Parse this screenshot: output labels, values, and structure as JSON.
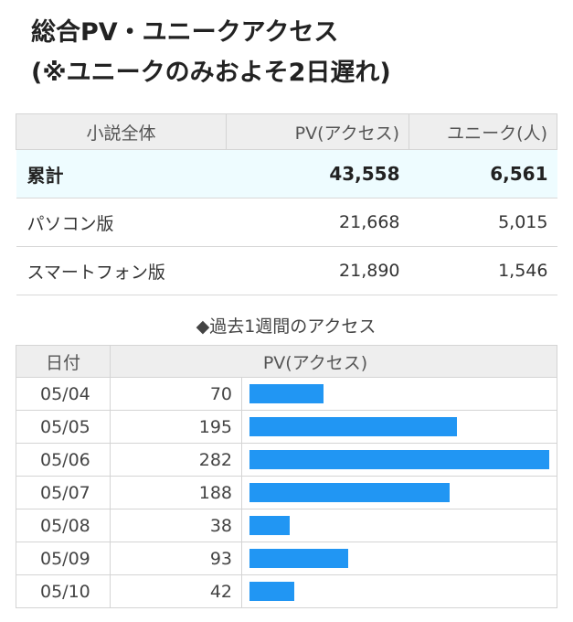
{
  "title": {
    "line1": "総合PV・ユニークアクセス",
    "line2": "(※ユニークのみおよそ2日遅れ)"
  },
  "summary": {
    "headers": [
      "小説全体",
      "PV(アクセス)",
      "ユニーク(人)"
    ],
    "rows": [
      {
        "label": "累計",
        "pv": "43,558",
        "unique": "6,561"
      },
      {
        "label": "パソコン版",
        "pv": "21,668",
        "unique": "5,015"
      },
      {
        "label": "スマートフォン版",
        "pv": "21,890",
        "unique": "1,546"
      }
    ]
  },
  "weekly": {
    "caption": "◆過去1週間のアクセス",
    "headers": [
      "日付",
      "PV(アクセス)"
    ],
    "bar_color": "#2196f3",
    "rows": [
      {
        "date": "05/04",
        "pv": "70"
      },
      {
        "date": "05/05",
        "pv": "195"
      },
      {
        "date": "05/06",
        "pv": "282"
      },
      {
        "date": "05/07",
        "pv": "188"
      },
      {
        "date": "05/08",
        "pv": "38"
      },
      {
        "date": "05/09",
        "pv": "93"
      },
      {
        "date": "05/10",
        "pv": "42"
      }
    ]
  },
  "chart_data": {
    "type": "bar",
    "categories": [
      "05/04",
      "05/05",
      "05/06",
      "05/07",
      "05/08",
      "05/09",
      "05/10"
    ],
    "values": [
      70,
      195,
      282,
      188,
      38,
      93,
      42
    ],
    "title": "◆過去1週間のアクセス",
    "xlabel": "日付",
    "ylabel": "PV(アクセス)"
  }
}
